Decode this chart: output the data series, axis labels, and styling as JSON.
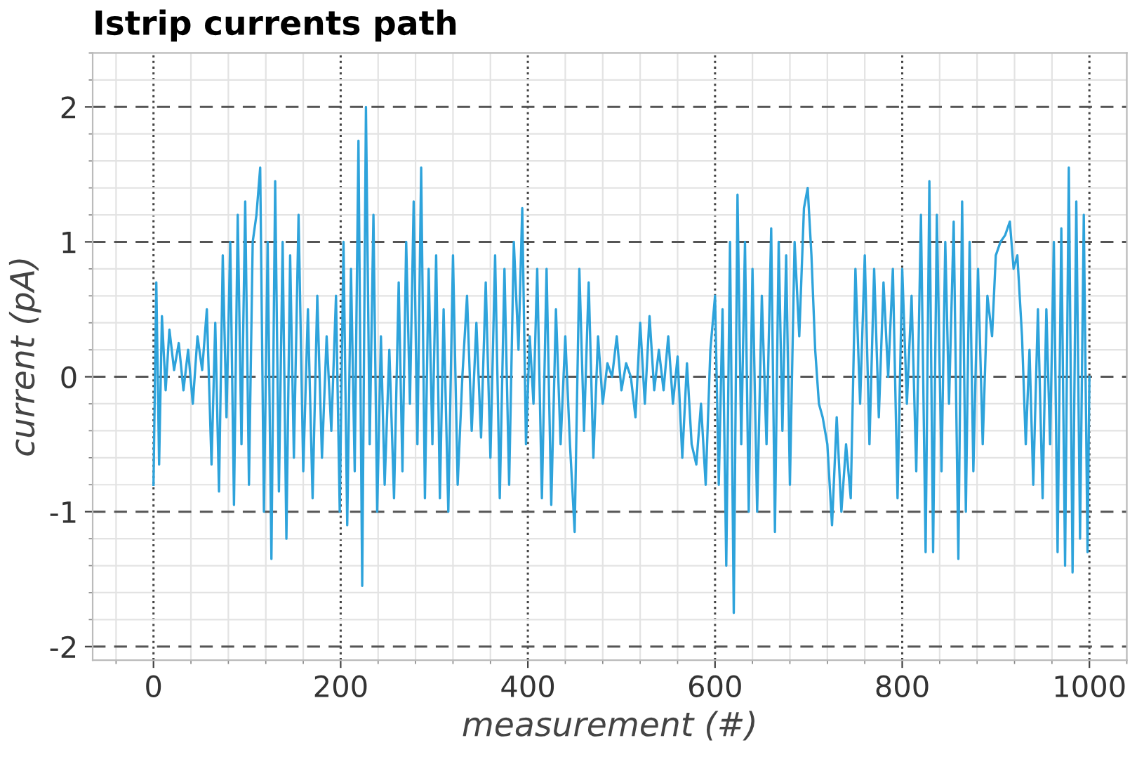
{
  "chart_data": {
    "type": "line",
    "title": "Istrip currents path",
    "xlabel": "measurement (#)",
    "ylabel": "current (pA)",
    "xlim": [
      -65,
      1040
    ],
    "ylim": [
      -2.1,
      2.4
    ],
    "xticks": [
      0,
      200,
      400,
      600,
      800,
      1000
    ],
    "yticks": [
      -2,
      -1,
      0,
      1,
      2
    ],
    "grid": true,
    "marker": "none",
    "line_style": "solid",
    "series": [
      {
        "color": "#2ea3db",
        "x": [
          0,
          3,
          6,
          9,
          13,
          17,
          22,
          27,
          32,
          37,
          42,
          47,
          52,
          57,
          62,
          66,
          70,
          74,
          78,
          82,
          86,
          90,
          94,
          98,
          102,
          106,
          110,
          114,
          118,
          122,
          126,
          130,
          134,
          138,
          142,
          146,
          150,
          155,
          160,
          165,
          170,
          175,
          180,
          185,
          190,
          195,
          199,
          203,
          207,
          211,
          215,
          219,
          223,
          227,
          231,
          235,
          239,
          243,
          247,
          252,
          257,
          262,
          266,
          270,
          274,
          278,
          282,
          286,
          290,
          294,
          298,
          302,
          306,
          310,
          315,
          320,
          325,
          330,
          335,
          340,
          345,
          350,
          355,
          360,
          365,
          370,
          375,
          380,
          385,
          390,
          394,
          398,
          402,
          406,
          410,
          415,
          420,
          425,
          430,
          435,
          440,
          445,
          450,
          455,
          460,
          465,
          470,
          475,
          480,
          485,
          490,
          495,
          500,
          505,
          510,
          515,
          520,
          525,
          530,
          535,
          540,
          545,
          550,
          555,
          560,
          565,
          570,
          575,
          580,
          585,
          590,
          595,
          600,
          604,
          608,
          612,
          616,
          620,
          624,
          628,
          632,
          636,
          640,
          645,
          650,
          655,
          660,
          664,
          668,
          672,
          676,
          680,
          685,
          690,
          695,
          699,
          703,
          707,
          711,
          715,
          720,
          725,
          730,
          735,
          740,
          745,
          750,
          755,
          760,
          765,
          770,
          775,
          780,
          785,
          790,
          795,
          800,
          805,
          810,
          815,
          820,
          825,
          829,
          833,
          837,
          842,
          846,
          850,
          855,
          860,
          864,
          868,
          872,
          876,
          881,
          886,
          891,
          896,
          900,
          905,
          910,
          915,
          919,
          923,
          928,
          932,
          936,
          940,
          945,
          950,
          954,
          958,
          962,
          966,
          970,
          974,
          978,
          982,
          986,
          990,
          994,
          998,
          1000
        ],
        "values": [
          -0.8,
          0.7,
          -0.65,
          0.45,
          -0.1,
          0.35,
          0.05,
          0.25,
          -0.1,
          0.2,
          -0.2,
          0.3,
          0.05,
          0.5,
          -0.65,
          0.4,
          -0.85,
          0.9,
          -0.3,
          1.0,
          -0.95,
          1.2,
          -0.5,
          1.3,
          -0.8,
          1.0,
          1.2,
          1.55,
          -1.0,
          1.0,
          -1.35,
          1.45,
          -0.85,
          1.0,
          -1.2,
          0.9,
          -0.6,
          1.2,
          -0.7,
          0.5,
          -0.9,
          0.6,
          -0.6,
          0.3,
          -0.4,
          0.6,
          -1.0,
          1.0,
          -1.1,
          0.8,
          -0.7,
          1.75,
          -1.55,
          2.0,
          -0.5,
          1.2,
          -1.0,
          0.3,
          -0.8,
          0.2,
          -0.9,
          0.7,
          -0.7,
          1.0,
          -0.2,
          1.3,
          -0.5,
          1.55,
          -0.9,
          0.8,
          -0.5,
          0.9,
          -0.9,
          0.5,
          -1.0,
          0.9,
          -0.8,
          0.0,
          0.6,
          -0.4,
          0.4,
          -0.45,
          0.7,
          -0.6,
          0.9,
          -0.9,
          0.8,
          -0.8,
          1.0,
          0.2,
          1.25,
          -0.5,
          0.3,
          -0.2,
          0.8,
          -0.9,
          0.8,
          -0.95,
          0.5,
          -0.5,
          0.3,
          -0.5,
          -1.15,
          0.8,
          -0.4,
          0.7,
          -0.6,
          0.3,
          -0.2,
          0.1,
          0.0,
          0.3,
          -0.1,
          0.1,
          0.0,
          -0.3,
          0.4,
          -0.2,
          0.45,
          -0.1,
          0.2,
          -0.1,
          0.3,
          -0.2,
          0.15,
          -0.6,
          0.1,
          -0.5,
          -0.65,
          -0.2,
          -0.8,
          0.2,
          0.6,
          -0.8,
          0.5,
          -1.4,
          1.0,
          -1.75,
          1.35,
          -0.5,
          1.0,
          -1.0,
          0.8,
          -1.0,
          0.6,
          -0.5,
          1.1,
          -1.15,
          1.0,
          -0.4,
          0.9,
          -0.8,
          1.0,
          0.3,
          1.25,
          1.4,
          0.9,
          0.2,
          -0.2,
          -0.3,
          -0.5,
          -1.1,
          -0.3,
          -1.0,
          -0.5,
          -0.9,
          0.8,
          -0.2,
          0.9,
          -0.5,
          0.8,
          -0.3,
          0.7,
          0.0,
          0.8,
          -0.9,
          0.8,
          -0.2,
          0.6,
          -0.7,
          1.2,
          -1.3,
          1.45,
          -1.3,
          1.2,
          -0.7,
          1.0,
          -0.2,
          1.15,
          -1.35,
          1.3,
          -1.0,
          1.0,
          -0.7,
          0.8,
          -0.5,
          0.6,
          0.3,
          0.9,
          1.0,
          1.05,
          1.15,
          0.8,
          0.9,
          0.3,
          -0.5,
          0.2,
          -0.8,
          0.5,
          -0.9,
          0.5,
          -0.5,
          1.0,
          -1.3,
          1.1,
          -1.4,
          1.55,
          -1.45,
          1.3,
          -1.2,
          1.2,
          -1.3,
          0.0
        ]
      }
    ]
  }
}
